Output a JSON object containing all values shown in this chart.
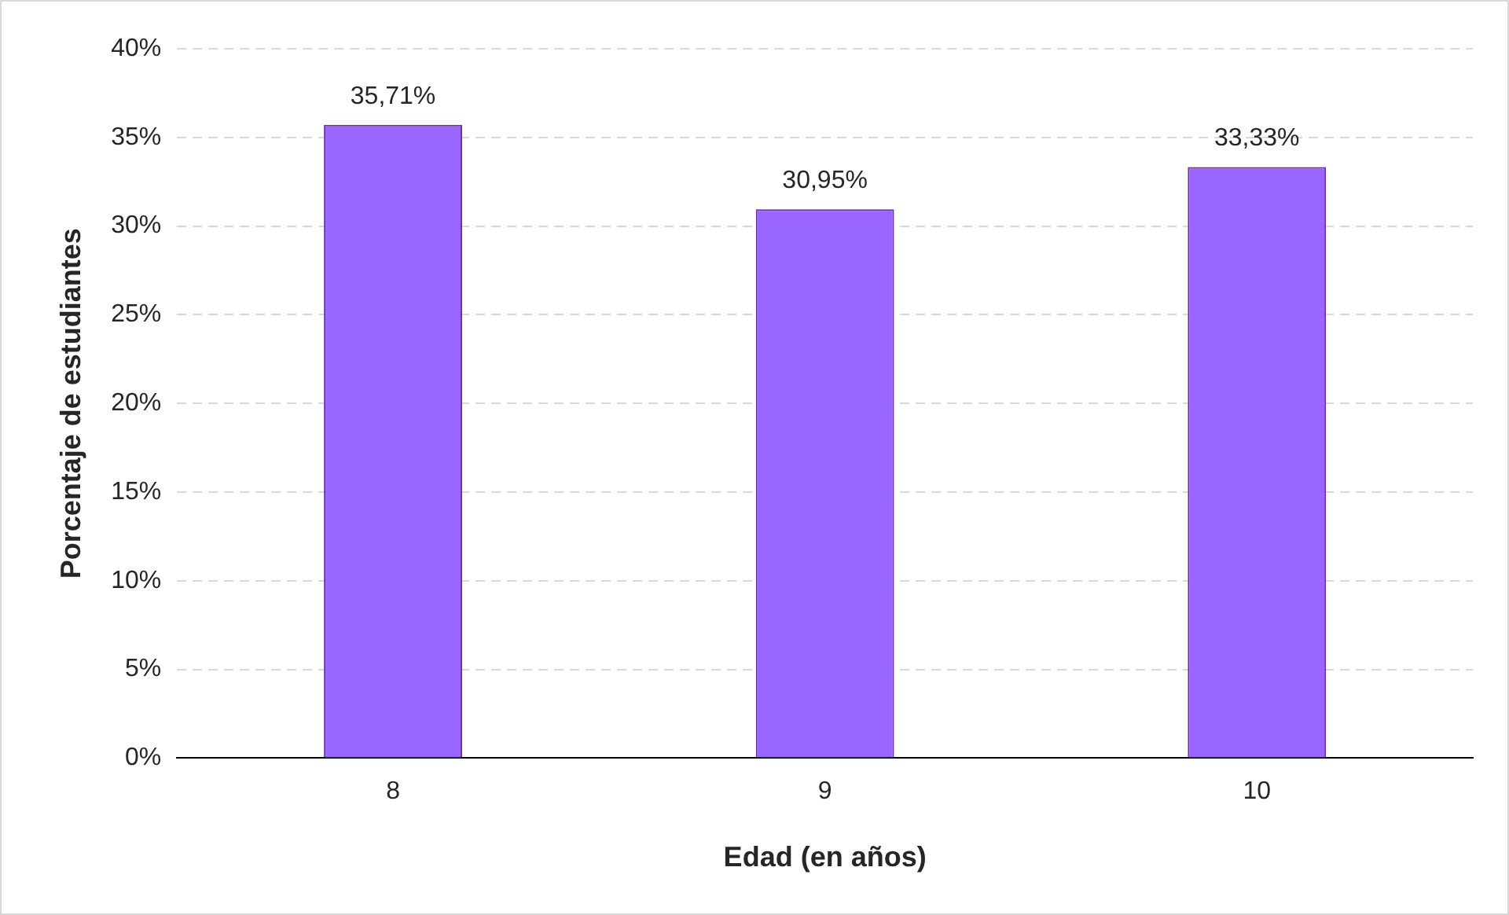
{
  "chart_data": {
    "type": "bar",
    "xlabel": "Edad (en años)",
    "ylabel": "Porcentaje de estudiantes",
    "categories": [
      "8",
      "9",
      "10"
    ],
    "series": [
      {
        "color": "#9966ff",
        "values": [
          35.71,
          30.95,
          33.33
        ],
        "value_labels": [
          "35,71%",
          "30,95%",
          "33,33%"
        ]
      }
    ],
    "ylim": [
      0,
      40
    ],
    "yticks": [
      {
        "value": 0,
        "label": "0%"
      },
      {
        "value": 5,
        "label": "5%"
      },
      {
        "value": 10,
        "label": "10%"
      },
      {
        "value": 15,
        "label": "15%"
      },
      {
        "value": 20,
        "label": "20%"
      },
      {
        "value": 25,
        "label": "25%"
      },
      {
        "value": 30,
        "label": "30%"
      },
      {
        "value": 35,
        "label": "35%"
      },
      {
        "value": 40,
        "label": "40%"
      }
    ],
    "grid": "y",
    "legend": false
  }
}
